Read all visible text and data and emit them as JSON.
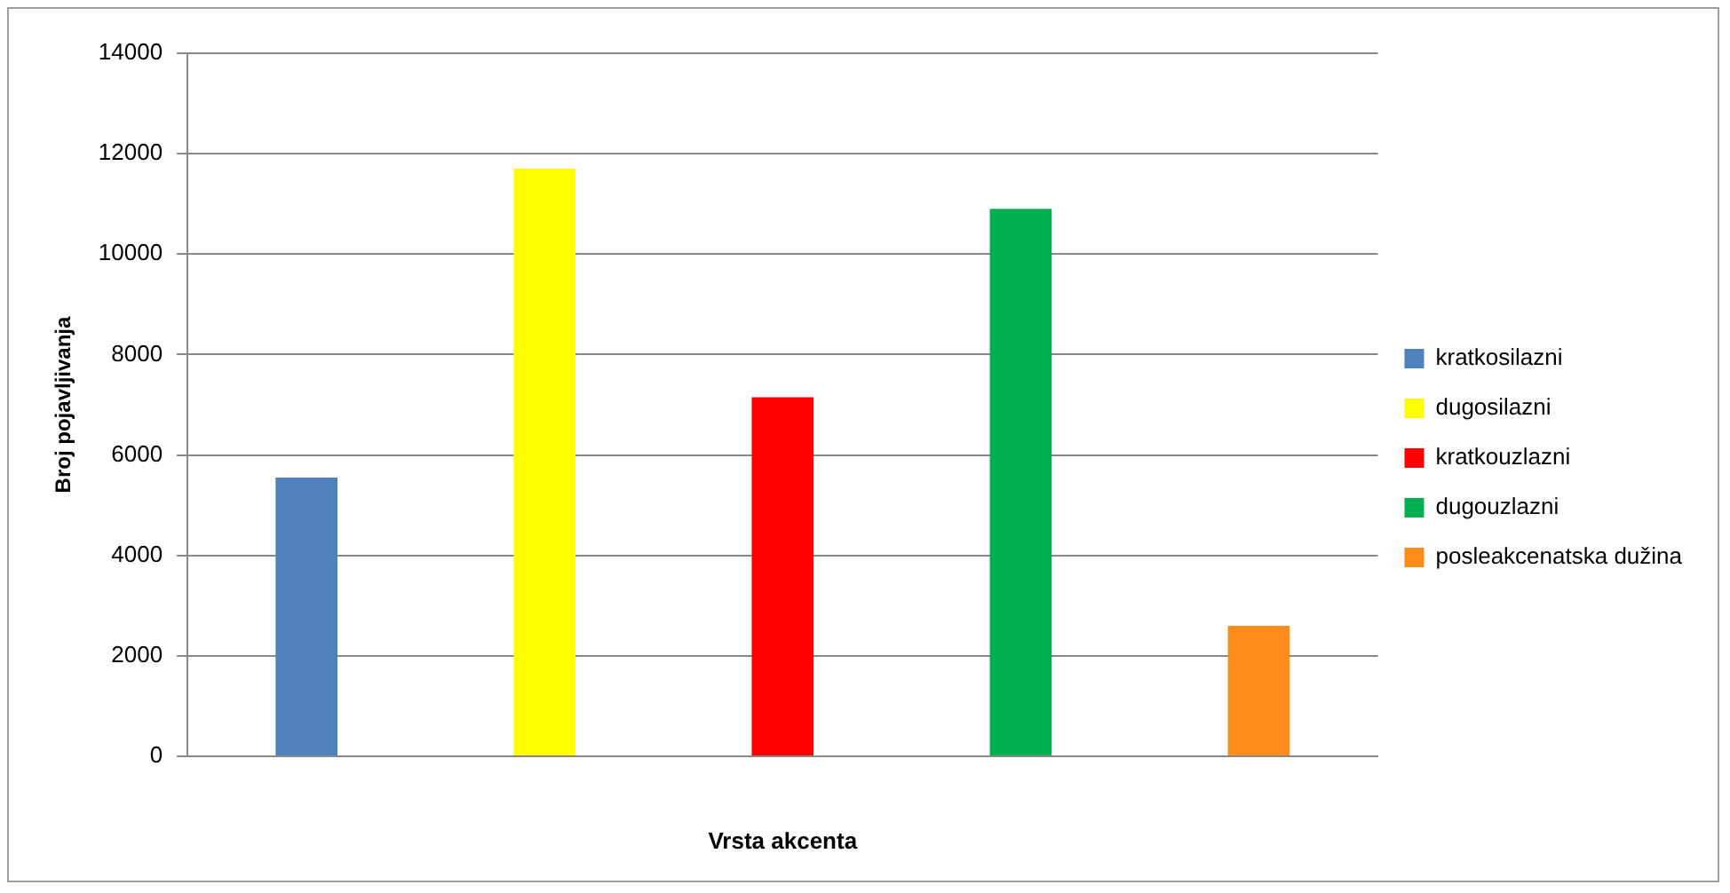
{
  "chart_data": {
    "type": "bar",
    "xlabel": "Vrsta akcenta",
    "ylabel": "Broj pojavljivanja",
    "categories": [
      null
    ],
    "series": [
      {
        "name": "kratkosilazni",
        "color": "#4f81bd",
        "values": [
          5550
        ]
      },
      {
        "name": "dugosilazni",
        "color": "#ffff00",
        "values": [
          11700
        ]
      },
      {
        "name": "kratkouzlazni",
        "color": "#ff0000",
        "values": [
          7150
        ]
      },
      {
        "name": "dugouzlazni",
        "color": "#00b050",
        "values": [
          10900
        ]
      },
      {
        "name": "posleakcenatska dužina",
        "color": "#ff8c1a",
        "values": [
          2600
        ]
      }
    ],
    "ylim": [
      0,
      14000
    ],
    "yticks": [
      0,
      2000,
      4000,
      6000,
      8000,
      10000,
      12000,
      14000
    ],
    "grid": "y",
    "legend": "right"
  }
}
